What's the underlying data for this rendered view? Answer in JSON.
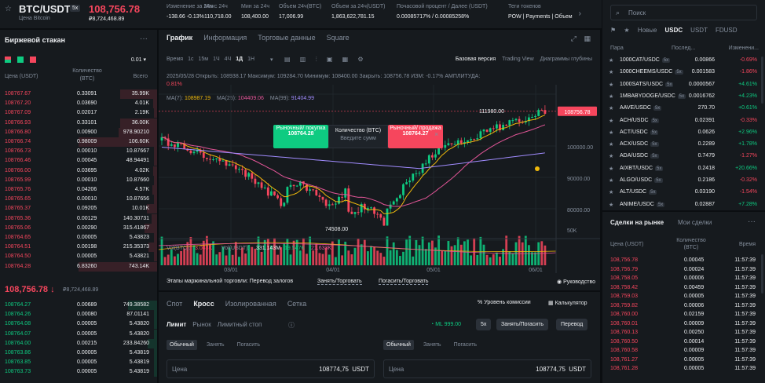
{
  "header": {
    "symbol": "BTC/USDT",
    "leverage": "5x",
    "name": "Цена Bitcoin",
    "price": "108,756.78",
    "price_usd": "₽8,724,468.89",
    "stats": [
      {
        "label": "Изменение за 24ч",
        "value": "-138.66 -0.13%",
        "color": "red"
      },
      {
        "label": "Макс 24ч",
        "value": "110,718.00",
        "color": "normal"
      },
      {
        "label": "Мин за 24ч",
        "value": "108,400.00",
        "color": "normal"
      },
      {
        "label": "Объем 24ч(BTC)",
        "value": "17,006.99",
        "color": "normal"
      },
      {
        "label": "Объем за 24ч(USDT)",
        "value": "1,863,622,781.15",
        "color": "normal"
      },
      {
        "label": "Почасовой процент / Далее (USDT)",
        "value": "0.00085717% / 0.00085258%",
        "color": "yellow"
      },
      {
        "label": "Теги токенов",
        "value": "POW | Payments | Объем",
        "color": "yellow"
      }
    ]
  },
  "orderbook": {
    "title": "Биржевой стакан",
    "step": "0.01",
    "col_price": "Цена (USDT)",
    "col_qty": "Количество (BTC)",
    "col_total": "Всего",
    "asks": [
      [
        "108767.67",
        "0.33091",
        "35.99K"
      ],
      [
        "108767.20",
        "0.03690",
        "4.01K"
      ],
      [
        "108767.09",
        "0.02017",
        "2.19K"
      ],
      [
        "108766.93",
        "0.33101",
        "36.00K"
      ],
      [
        "108766.80",
        "0.00900",
        "978.90210"
      ],
      [
        "108766.74",
        "0.98009",
        "106.60K"
      ],
      [
        "108766.73",
        "0.00010",
        "10.87667"
      ],
      [
        "108766.46",
        "0.00045",
        "48.94491"
      ],
      [
        "108766.00",
        "0.03695",
        "4.02K"
      ],
      [
        "108765.99",
        "0.00010",
        "10.87660"
      ],
      [
        "108765.76",
        "0.04206",
        "4.57K"
      ],
      [
        "108765.65",
        "0.00010",
        "10.87656"
      ],
      [
        "108765.37",
        "0.09205",
        "10.01K"
      ],
      [
        "108765.36",
        "0.00129",
        "140.30731"
      ],
      [
        "108765.06",
        "0.00290",
        "315.41867"
      ],
      [
        "108764.65",
        "0.00005",
        "5.43823"
      ],
      [
        "108764.51",
        "0.00198",
        "215.35373"
      ],
      [
        "108764.50",
        "0.00005",
        "5.43821"
      ],
      [
        "108764.28",
        "6.83260",
        "743.14K"
      ]
    ],
    "mid_price": "108,756.78",
    "mid_arrow": "↓",
    "mid_usd": "₽8,724,468.89",
    "bids": [
      [
        "108764.27",
        "0.00689",
        "749.38582"
      ],
      [
        "108764.26",
        "0.00080",
        "87.01141"
      ],
      [
        "108764.08",
        "0.00005",
        "5.43820"
      ],
      [
        "108764.07",
        "0.00005",
        "5.43820"
      ],
      [
        "108764.00",
        "0.00215",
        "233.84260"
      ],
      [
        "108763.86",
        "0.00005",
        "5.43819"
      ],
      [
        "108763.85",
        "0.00005",
        "5.43819"
      ],
      [
        "108763.73",
        "0.00005",
        "5.43819"
      ]
    ]
  },
  "chart": {
    "tabs": [
      "График",
      "Информация",
      "Торговые данные",
      "Square"
    ],
    "intervals": [
      "Время",
      "1с",
      "15м",
      "1Ч",
      "4Ч",
      "1Д",
      "1Н"
    ],
    "active_interval": "1Д",
    "views": [
      "Базовая версия",
      "Trading View",
      "Диаграммы глубины"
    ],
    "ohlc_line": "2025/05/28  Открыть: 108938.17  Максимум: 109284.70  Минимум: 108400.00  Закрыть: 108756.78  ИЗМ: -0.17%  АМПЛИТУДА:",
    "ohlc_line2": "0.81%",
    "ma_label": "MA(7):",
    "ma7": "108987.19",
    "ma25_label": "MA(25):",
    "ma25": "104409.06",
    "ma99_label": "MA(99):",
    "ma99": "91404.99",
    "price_tag": "108756.78",
    "y_ticks": [
      "100000.00",
      "90000.00",
      "80000.00"
    ],
    "high_label": "111980.00",
    "low_label": "74508.00",
    "vol_label": "Vol(BTC):",
    "vol_btc": "3.043K",
    "vol_usdt_label": "Vol(USDT):",
    "vol_usdt": "331.143M",
    "vol_a": "19.547K",
    "vol_b": "21.633K",
    "vol_tick": "50K",
    "x_ticks": [
      "03/01",
      "04/01",
      "05/01",
      "06/01"
    ],
    "popup_buy": "Рыночный/ покупка",
    "popup_buy_price": "108764.28",
    "popup_qty": "Количество (BTC)",
    "popup_qty_ph": "Введите сумм",
    "popup_sell": "Рыночный/ продажа",
    "popup_sell_price": "108764.27",
    "margin_steps": [
      "Этапы маржинальной торговли: Перевод залогов",
      "Занять/Торговать",
      "Погасить/Торговать"
    ],
    "guide": "Руководство"
  },
  "trade": {
    "modes": [
      "Спот",
      "Кросс",
      "Изолированная",
      "Сетка"
    ],
    "commission": "Уровень комиссии",
    "calculator": "Калькулятор",
    "order_types": [
      "Лимит",
      "Рынок",
      "Лимитный стоп"
    ],
    "ml": "ML 999.00",
    "lev": "5x",
    "borrow": "Занять/Погасить",
    "transfer": "Перевод",
    "sub_modes": [
      "Обычный",
      "Занять",
      "Погасить"
    ],
    "price_label": "Цена",
    "price_value": "108774,75",
    "currency": "USDT"
  },
  "markets": {
    "search_placeholder": "Поиск",
    "tabs": [
      "Новые",
      "USDC",
      "USDT",
      "FDUSD"
    ],
    "col_pair": "Пара",
    "col_last": "Послед...",
    "col_change": "Изменени...",
    "rows": [
      [
        "1000CAT/USDC",
        "5x",
        "0.00866",
        "-0.69%",
        "red"
      ],
      [
        "1000CHEEMS/USDC",
        "5x",
        "0.001583",
        "-1.86%",
        "red"
      ],
      [
        "1000SATS/USDC",
        "5x",
        "0.0000567",
        "+4.61%",
        "green"
      ],
      [
        "1MBABYDOGE/USDC",
        "5x",
        "0.0016762",
        "+4.23%",
        "green"
      ],
      [
        "AAVE/USDC",
        "5x",
        "270.70",
        "+0.61%",
        "green"
      ],
      [
        "ACH/USDC",
        "5x",
        "0.02391",
        "-0.33%",
        "red"
      ],
      [
        "ACT/USDC",
        "5x",
        "0.0626",
        "+2.96%",
        "green"
      ],
      [
        "ACX/USDC",
        "5x",
        "0.2289",
        "+1.78%",
        "green"
      ],
      [
        "ADA/USDC",
        "5x",
        "0.7479",
        "-1.27%",
        "red"
      ],
      [
        "AIXBT/USDC",
        "5x",
        "0.2418",
        "+20.66%",
        "green"
      ],
      [
        "ALGO/USDC",
        "5x",
        "0.2186",
        "-0.32%",
        "red"
      ],
      [
        "ALT/USDC",
        "5x",
        "0.03190",
        "-1.54%",
        "red"
      ],
      [
        "ANIME/USDC",
        "5x",
        "0.02887",
        "+7.28%",
        "green"
      ]
    ]
  },
  "trades": {
    "tabs": [
      "Сделки на рынке",
      "Мои сделки"
    ],
    "col_price": "Цена (USDT)",
    "col_qty": "Количество (BTC)",
    "col_time": "Время",
    "rows": [
      [
        "108,756.78",
        "0.00045",
        "11:57:39",
        "red"
      ],
      [
        "108,756.79",
        "0.00024",
        "11:57:39",
        "red"
      ],
      [
        "108,758.05",
        "0.00006",
        "11:57:39",
        "red"
      ],
      [
        "108,758.42",
        "0.00459",
        "11:57:39",
        "red"
      ],
      [
        "108,759.03",
        "0.00005",
        "11:57:39",
        "red"
      ],
      [
        "108,759.82",
        "0.00006",
        "11:57:39",
        "red"
      ],
      [
        "108,760.00",
        "0.02159",
        "11:57:39",
        "red"
      ],
      [
        "108,760.01",
        "0.00009",
        "11:57:39",
        "red"
      ],
      [
        "108,760.13",
        "0.00250",
        "11:57:39",
        "red"
      ],
      [
        "108,760.50",
        "0.00014",
        "11:57:39",
        "red"
      ],
      [
        "108,760.58",
        "0.00009",
        "11:57:39",
        "red"
      ],
      [
        "108,761.27",
        "0.00005",
        "11:57:39",
        "red"
      ],
      [
        "108,761.28",
        "0.00005",
        "11:57:39",
        "red"
      ]
    ]
  }
}
